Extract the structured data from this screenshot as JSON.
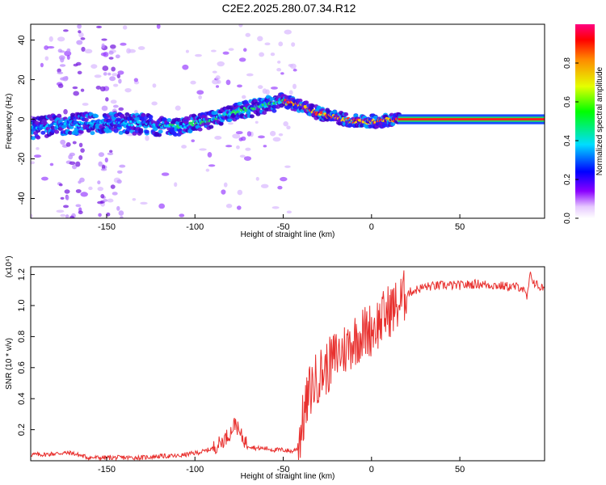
{
  "title": "C2E2.2025.280.07.34.R12",
  "chart_data": [
    {
      "type": "heatmap",
      "title": "C2E2.2025.280.07.34.R12",
      "xlabel": "Height of straight line (km)",
      "ylabel": "Frequency (Hz)",
      "xlim": [
        -193,
        98
      ],
      "ylim": [
        -50,
        48
      ],
      "xticks": [
        -150,
        -100,
        -50,
        0,
        50
      ],
      "yticks": [
        -40,
        -20,
        0,
        20,
        40
      ],
      "colorbar": {
        "label": "Normalized spectral amplitude",
        "range": [
          0,
          1
        ],
        "ticks": [
          0.0,
          0.2,
          0.4,
          0.6,
          0.8
        ]
      },
      "ridge": {
        "x": [
          -193,
          -180,
          -160,
          -140,
          -120,
          -110,
          -100,
          -90,
          -80,
          -70,
          -60,
          -50,
          -45,
          -40,
          -35,
          -30,
          -25,
          -20,
          -15,
          -10,
          -5,
          0,
          5,
          10,
          15,
          98
        ],
        "y": [
          -5,
          -3,
          -2,
          -2,
          -3,
          -4,
          -2,
          0,
          3,
          5,
          7,
          9,
          8,
          7,
          5,
          3,
          2,
          1,
          0,
          -1,
          -1,
          -1,
          -1,
          0,
          0,
          0
        ]
      }
    },
    {
      "type": "line",
      "xlabel": "Height of straight line (km)",
      "ylabel": "SNR (10 * v/v)",
      "scale_label": "(x10⁴)",
      "xlim": [
        -193,
        98
      ],
      "ylim": [
        0,
        1.25
      ],
      "xticks": [
        -150,
        -100,
        -50,
        0,
        50
      ],
      "yticks": [
        0.2,
        0.4,
        0.6,
        0.8,
        1.0,
        1.2
      ],
      "color": "#e8312f",
      "series": [
        {
          "name": "SNR",
          "x": [
            -193,
            -185,
            -175,
            -170,
            -160,
            -150,
            -140,
            -130,
            -120,
            -110,
            -100,
            -95,
            -90,
            -85,
            -80,
            -77,
            -75,
            -70,
            -65,
            -60,
            -55,
            -50,
            -45,
            -42,
            -40,
            -38,
            -35,
            -30,
            -25,
            -20,
            -15,
            -10,
            -5,
            0,
            5,
            10,
            15,
            18,
            20,
            25,
            30,
            40,
            50,
            60,
            70,
            80,
            85,
            88,
            90,
            92,
            95,
            98
          ],
          "y": [
            0.04,
            0.04,
            0.05,
            0.05,
            0.02,
            0.02,
            0.02,
            0.02,
            0.03,
            0.03,
            0.05,
            0.06,
            0.08,
            0.12,
            0.18,
            0.25,
            0.18,
            0.1,
            0.08,
            0.08,
            0.07,
            0.07,
            0.06,
            0.08,
            0.2,
            0.3,
            0.45,
            0.55,
            0.6,
            0.68,
            0.72,
            0.78,
            0.82,
            0.85,
            0.9,
            0.97,
            1.0,
            1.05,
            1.08,
            1.1,
            1.12,
            1.13,
            1.13,
            1.14,
            1.13,
            1.12,
            1.12,
            1.05,
            1.2,
            1.15,
            1.12,
            1.11
          ]
        }
      ]
    }
  ]
}
